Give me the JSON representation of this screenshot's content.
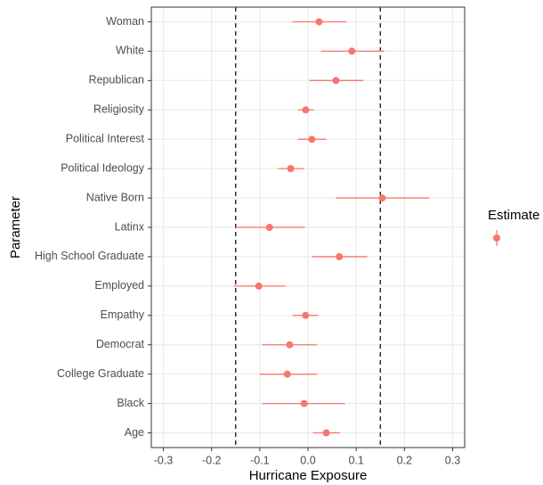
{
  "chart_data": {
    "type": "dotwhisker",
    "x_label": "Hurricane Exposure",
    "y_label": "Parameter",
    "legend_title": "Estimate",
    "categories": [
      "Woman",
      "White",
      "Republican",
      "Religiosity",
      "Political Interest",
      "Political Ideology",
      "Native Born",
      "Latinx",
      "High School Graduate",
      "Employed",
      "Empathy",
      "Democrat",
      "College Graduate",
      "Black",
      "Age"
    ],
    "series": [
      {
        "color": "#F8766D",
        "values": [
          0.023,
          0.091,
          0.058,
          -0.005,
          0.008,
          -0.036,
          0.154,
          -0.08,
          0.065,
          -0.102,
          -0.005,
          -0.038,
          -0.043,
          -0.008,
          0.038
        ],
        "lower": [
          -0.032,
          0.027,
          0.003,
          -0.021,
          -0.021,
          -0.062,
          0.058,
          -0.15,
          0.008,
          -0.154,
          -0.032,
          -0.095,
          -0.1,
          -0.095,
          0.01
        ],
        "upper": [
          0.08,
          0.158,
          0.115,
          0.012,
          0.038,
          -0.008,
          0.252,
          -0.006,
          0.123,
          -0.047,
          0.021,
          0.019,
          0.019,
          0.077,
          0.067
        ]
      }
    ],
    "reference_lines": [
      -0.15,
      0.15
    ],
    "xlim": [
      -0.325,
      0.325
    ],
    "xticks": [
      -0.3,
      -0.2,
      -0.1,
      {
        "value": 0,
        "label": "0.0"
      },
      0.1,
      0.2,
      0.3
    ],
    "grid": true
  }
}
